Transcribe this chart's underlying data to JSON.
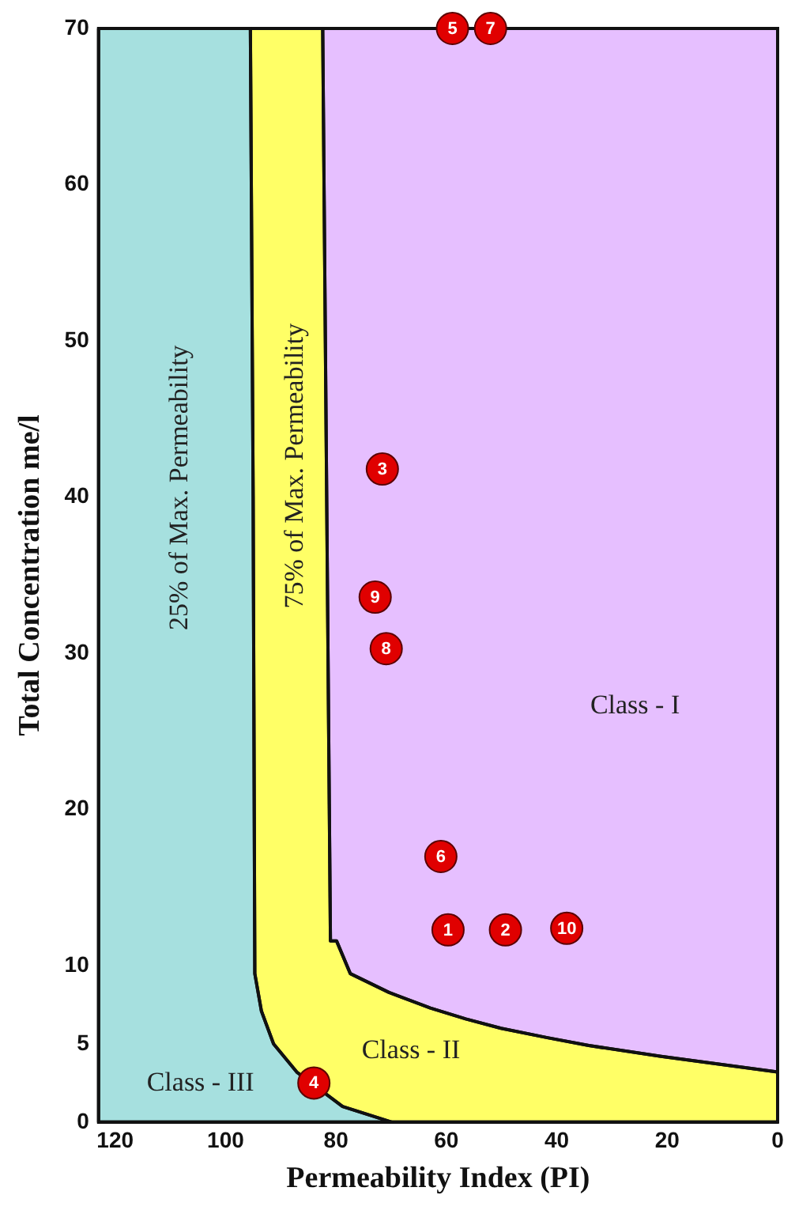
{
  "chart_data": {
    "type": "scatter",
    "xlabel": "Permeability Index (PI)",
    "ylabel": "Total Concentration me/l",
    "xlim": [
      123,
      0
    ],
    "xticks": [
      120,
      100,
      80,
      60,
      40,
      20,
      0
    ],
    "ylim": [
      0,
      70
    ],
    "yticks": [
      0,
      5,
      10,
      20,
      30,
      40,
      50,
      60,
      70
    ],
    "grid": false,
    "legend": false,
    "series": [
      {
        "type": "area",
        "color": "#a6e0df",
        "x": [
          123,
          95.5,
          95,
          94.7,
          93.5,
          91.3,
          87.1,
          78.8,
          69.9,
          123
        ],
        "values": [
          70,
          70,
          40,
          9.5,
          7.1,
          5,
          3.2,
          1,
          0,
          0
        ]
      },
      {
        "type": "area",
        "color": "#ffff66",
        "x": [
          95.5,
          82.4,
          81,
          79.9,
          77.4,
          70.4,
          62.9,
          56.5,
          50.1,
          41.7,
          34.2,
          21.1,
          0,
          0,
          69.9,
          78.8,
          87.1,
          91.3,
          93.5,
          94.7,
          95
        ],
        "values": [
          70,
          70,
          11.6,
          11.6,
          9.5,
          8.3,
          7.3,
          6.6,
          6,
          5.4,
          4.9,
          4.2,
          3.2,
          0,
          0,
          1,
          3.2,
          5,
          7.1,
          9.5,
          40
        ]
      },
      {
        "type": "area",
        "color": "#e6bfff",
        "x": [
          82.4,
          0,
          0,
          21.1,
          34.2,
          41.7,
          50.1,
          56.5,
          62.9,
          70.4,
          77.4,
          79.9,
          81
        ],
        "values": [
          70,
          70,
          3.2,
          4.2,
          4.9,
          5.4,
          6,
          6.6,
          7.3,
          8.3,
          9.5,
          11.6,
          11.6
        ]
      },
      {
        "name": "1",
        "color": "#e00000",
        "marker": "circle",
        "x": [
          59.7
        ],
        "values": [
          12.3
        ]
      },
      {
        "name": "2",
        "color": "#e00000",
        "marker": "circle",
        "x": [
          49.3
        ],
        "values": [
          12.3
        ]
      },
      {
        "name": "3",
        "color": "#e00000",
        "marker": "circle",
        "x": [
          71.6
        ],
        "values": [
          41.8
        ]
      },
      {
        "name": "4",
        "color": "#e00000",
        "marker": "circle",
        "x": [
          84
        ],
        "values": [
          2.5
        ]
      },
      {
        "name": "5",
        "color": "#e00000",
        "marker": "circle",
        "x": [
          58.9
        ],
        "values": [
          70
        ]
      },
      {
        "name": "6",
        "color": "#e00000",
        "marker": "circle",
        "x": [
          61
        ],
        "values": [
          17
        ]
      },
      {
        "name": "7",
        "color": "#e00000",
        "marker": "circle",
        "x": [
          52
        ],
        "values": [
          70
        ]
      },
      {
        "name": "8",
        "color": "#e00000",
        "marker": "circle",
        "x": [
          70.9
        ],
        "values": [
          30.3
        ]
      },
      {
        "name": "9",
        "color": "#e00000",
        "marker": "circle",
        "x": [
          72.9
        ],
        "values": [
          33.6
        ]
      },
      {
        "name": "10",
        "color": "#e00000",
        "marker": "circle",
        "x": [
          38.2
        ],
        "values": [
          12.4
        ]
      }
    ],
    "annotations": [
      "25% of Max. Permeability",
      "75% of Max. Permeability",
      "Class - I",
      "Class - II",
      "Class - III"
    ]
  }
}
